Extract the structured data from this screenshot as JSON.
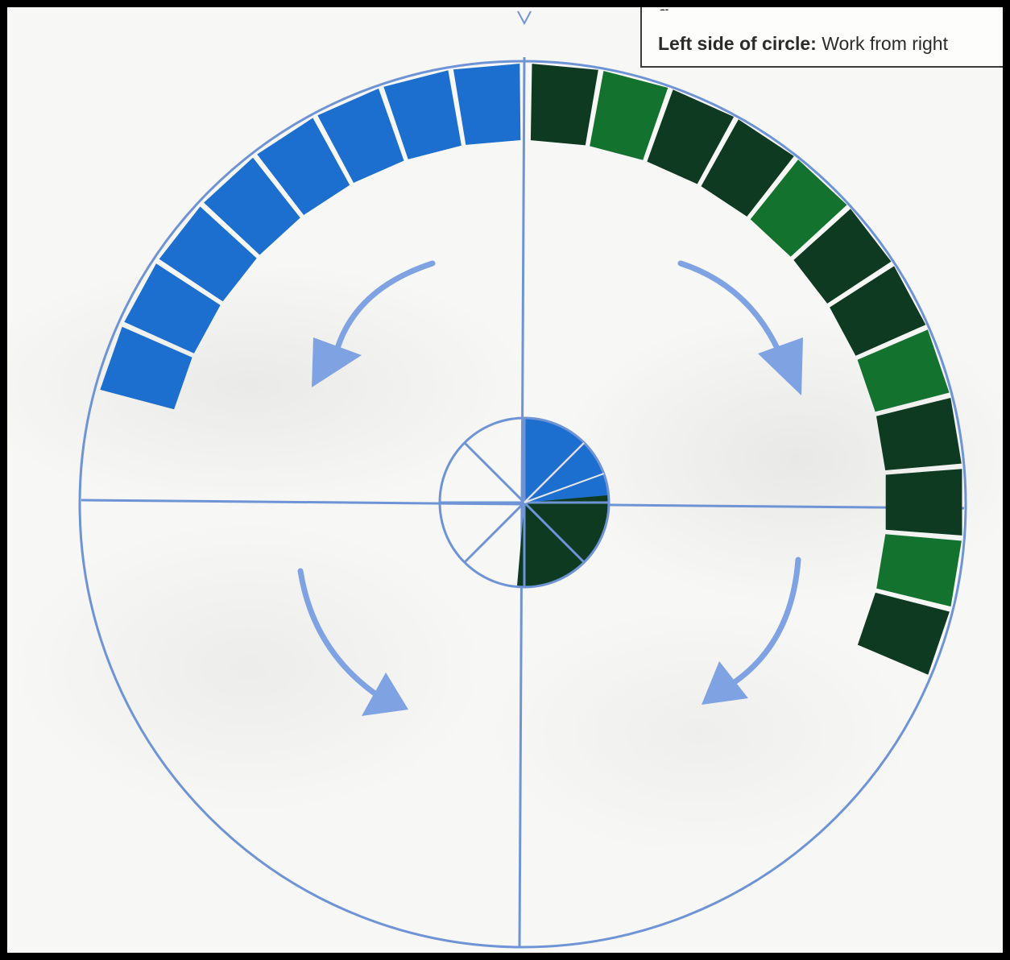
{
  "instruction_note": {
    "label": "Left side of circle:",
    "text": " Work from right"
  },
  "colors": {
    "guide_line": "#6f94d6",
    "arrow": "#7ea2e2",
    "tile_blue": "#1d6fcf",
    "tile_green": "#0e3a22",
    "tile_green_light": "#14722f"
  },
  "tiles": {
    "blue_count": 8,
    "green_count": 12,
    "center_blue_slices": 2,
    "center_green_slices": 3
  }
}
